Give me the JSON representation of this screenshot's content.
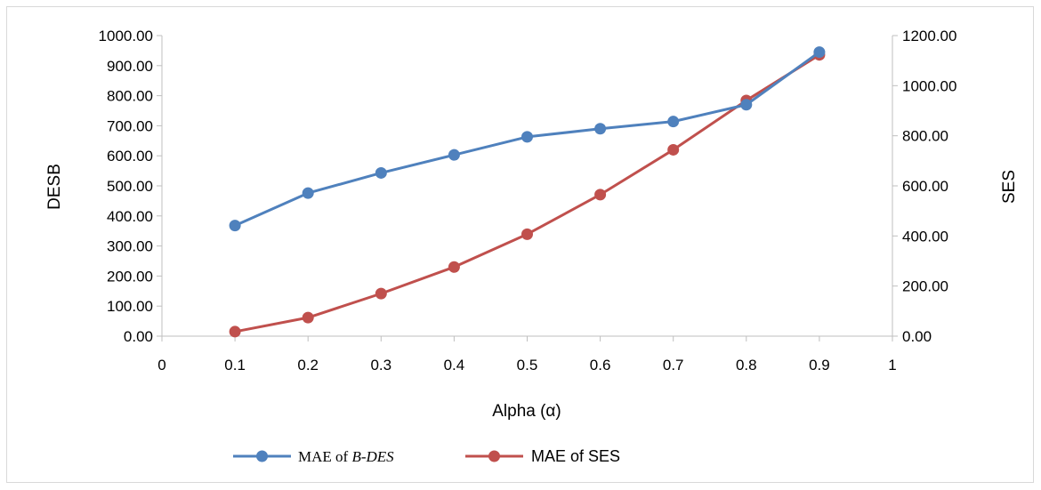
{
  "chart_data": {
    "type": "line",
    "title": "",
    "xlabel": "Alpha (α)",
    "ylabel_left": "DESB",
    "ylabel_right": "SES",
    "xlim": [
      0,
      1
    ],
    "ylim_left": [
      0,
      1000
    ],
    "ylim_right": [
      0,
      1200
    ],
    "x_ticks": [
      "0",
      "0.1",
      "0.2",
      "0.3",
      "0.4",
      "0.5",
      "0.6",
      "0.7",
      "0.8",
      "0.9",
      "1"
    ],
    "y_ticks_left": [
      "0.00",
      "100.00",
      "200.00",
      "300.00",
      "400.00",
      "500.00",
      "600.00",
      "700.00",
      "800.00",
      "900.00",
      "1000.00"
    ],
    "y_ticks_right": [
      "0.00",
      "200.00",
      "400.00",
      "600.00",
      "800.00",
      "1000.00",
      "1200.00"
    ],
    "grid": false,
    "legend_position": "bottom",
    "x": [
      0.1,
      0.2,
      0.3,
      0.4,
      0.5,
      0.6,
      0.7,
      0.8,
      0.9
    ],
    "series": [
      {
        "name": "MAE of B-DES",
        "legend_prefix": "MAE of ",
        "legend_italic": "B-DES",
        "axis": "left",
        "color": "#4f81bd",
        "values": [
          368,
          476,
          543,
          603,
          663,
          690,
          714,
          770,
          945
        ]
      },
      {
        "name": "MAE of SES",
        "axis": "right",
        "color": "#c0504d",
        "values": [
          18,
          74,
          170,
          276,
          407,
          565,
          744,
          941,
          1123
        ]
      }
    ]
  }
}
